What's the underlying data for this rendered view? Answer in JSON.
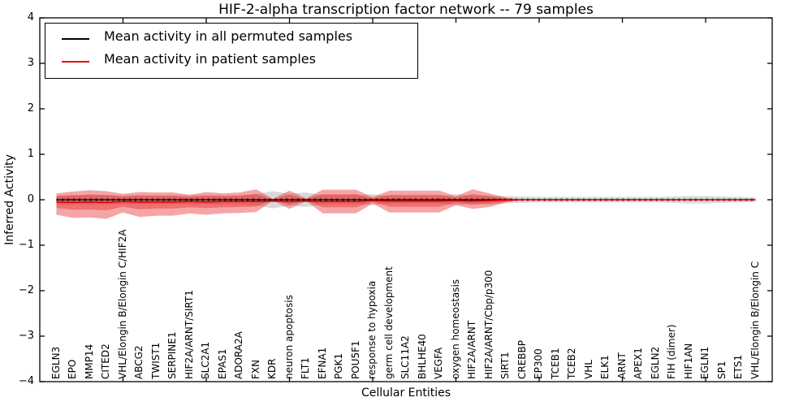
{
  "title": "HIF-2-alpha transcription factor network -- 79 samples",
  "axes": {
    "ylabel": "Inferred Activity",
    "xlabel": "Cellular Entities",
    "ytick_labels": [
      "4",
      "3",
      "2",
      "1",
      "0",
      "−1",
      "−2",
      "−3",
      "−4"
    ]
  },
  "legend": {
    "items": [
      {
        "label": "Mean activity in all permuted samples",
        "color": "#000000"
      },
      {
        "label": "Mean activity in patient samples",
        "color": "#e60000"
      }
    ]
  },
  "chart_data": {
    "type": "line",
    "title": "HIF-2-alpha transcription factor network -- 79 samples",
    "xlabel": "Cellular Entities",
    "ylabel": "Inferred Activity",
    "ylim": [
      -4,
      4
    ],
    "xlim": [
      0,
      44
    ],
    "yticks": [
      4,
      3,
      2,
      1,
      0,
      -1,
      -2,
      -3,
      -4
    ],
    "xticks": [
      5,
      10,
      15,
      20,
      25,
      30,
      35,
      40
    ],
    "legend_position": "upper left",
    "grid": false,
    "sample_count": 79,
    "categories": [
      "EGLN3",
      "EPO",
      "MMP14",
      "CITED2",
      "VHL/Elongin B/Elongin C/HIF2A",
      "ABCG2",
      "TWIST1",
      "SERPINE1",
      "HIF2A/ARNT/SIRT1",
      "SLC2A1",
      "EPAS1",
      "ADORA2A",
      "FXN",
      "KDR",
      "neuron apoptosis",
      "FLT1",
      "EFNA1",
      "PGK1",
      "POU5F1",
      "response to hypoxia",
      "germ cell development",
      "SLC11A2",
      "BHLHE40",
      "VEGFA",
      "oxygen homeostasis",
      "HIF2A/ARNT",
      "HIF2A/ARNT/Cbp/p300",
      "SIRT1",
      "CREBBP",
      "EP300",
      "TCEB1",
      "TCEB2",
      "VHL",
      "ELK1",
      "ARNT",
      "APEX1",
      "EGLN2",
      "FIH (dimer)",
      "HIF1AN",
      "EGLN1",
      "SP1",
      "ETS1",
      "VHL/Elongin B/Elongin C"
    ],
    "series": [
      {
        "name": "Mean activity in all permuted samples",
        "values": [
          0,
          0,
          0,
          0,
          0,
          0,
          0,
          0,
          0,
          0,
          0,
          0,
          0,
          0,
          0,
          0,
          0,
          0,
          0,
          0,
          0,
          0,
          0,
          0,
          0,
          0,
          0,
          0,
          0,
          0,
          0,
          0,
          0,
          0,
          0,
          0,
          0,
          0,
          0,
          0,
          0,
          0,
          0
        ]
      },
      {
        "name": "Mean activity in patient samples",
        "values": [
          -0.05,
          -0.06,
          -0.05,
          -0.06,
          -0.04,
          -0.05,
          -0.05,
          -0.05,
          -0.04,
          -0.05,
          -0.04,
          -0.04,
          -0.04,
          -0.03,
          -0.04,
          -0.03,
          -0.04,
          -0.04,
          -0.04,
          -0.02,
          -0.03,
          -0.03,
          -0.03,
          -0.03,
          -0.02,
          -0.03,
          -0.02,
          -0.01,
          0,
          0,
          0,
          0,
          0,
          0,
          0,
          0,
          0,
          0,
          0,
          0,
          0,
          0,
          0
        ]
      }
    ],
    "bands": {
      "permuted_range": {
        "color": "#808080",
        "opacity": 0.3,
        "half_width": [
          0.1,
          0.1,
          0.1,
          0.1,
          0.1,
          0.1,
          0.1,
          0.1,
          0.1,
          0.1,
          0.1,
          0.1,
          0.12,
          0.19,
          0.13,
          0.16,
          0.1,
          0.1,
          0.1,
          0.12,
          0.08,
          0.08,
          0.08,
          0.08,
          0.12,
          0.08,
          0.1,
          0.08,
          0.07,
          0.06,
          0.06,
          0.06,
          0.06,
          0.06,
          0.06,
          0.06,
          0.06,
          0.07,
          0.08,
          0.08,
          0.07,
          0.06,
          0.05
        ]
      },
      "patient_range": {
        "color": "#e62828",
        "opacity": 0.42,
        "inner_scale": 0.55,
        "upper": [
          0.14,
          0.18,
          0.21,
          0.19,
          0.13,
          0.17,
          0.16,
          0.16,
          0.11,
          0.17,
          0.14,
          0.16,
          0.23,
          0.02,
          0.2,
          0.03,
          0.22,
          0.22,
          0.22,
          0.06,
          0.2,
          0.2,
          0.2,
          0.2,
          0.08,
          0.23,
          0.14,
          0.05,
          0,
          0,
          0,
          0,
          0,
          0,
          0,
          0,
          0,
          0,
          0,
          0,
          0,
          0,
          0
        ],
        "lower": [
          0.33,
          0.4,
          0.39,
          0.42,
          0.28,
          0.38,
          0.35,
          0.35,
          0.3,
          0.33,
          0.3,
          0.29,
          0.27,
          0.02,
          0.2,
          0.03,
          0.3,
          0.3,
          0.3,
          0.08,
          0.28,
          0.28,
          0.28,
          0.28,
          0.12,
          0.2,
          0.16,
          0.06,
          0,
          0,
          0,
          0,
          0,
          0,
          0,
          0,
          0,
          0,
          0,
          0,
          0,
          0,
          0
        ]
      }
    },
    "colors": {
      "permuted_line": "#000000",
      "patient_line": "#e60000"
    }
  }
}
